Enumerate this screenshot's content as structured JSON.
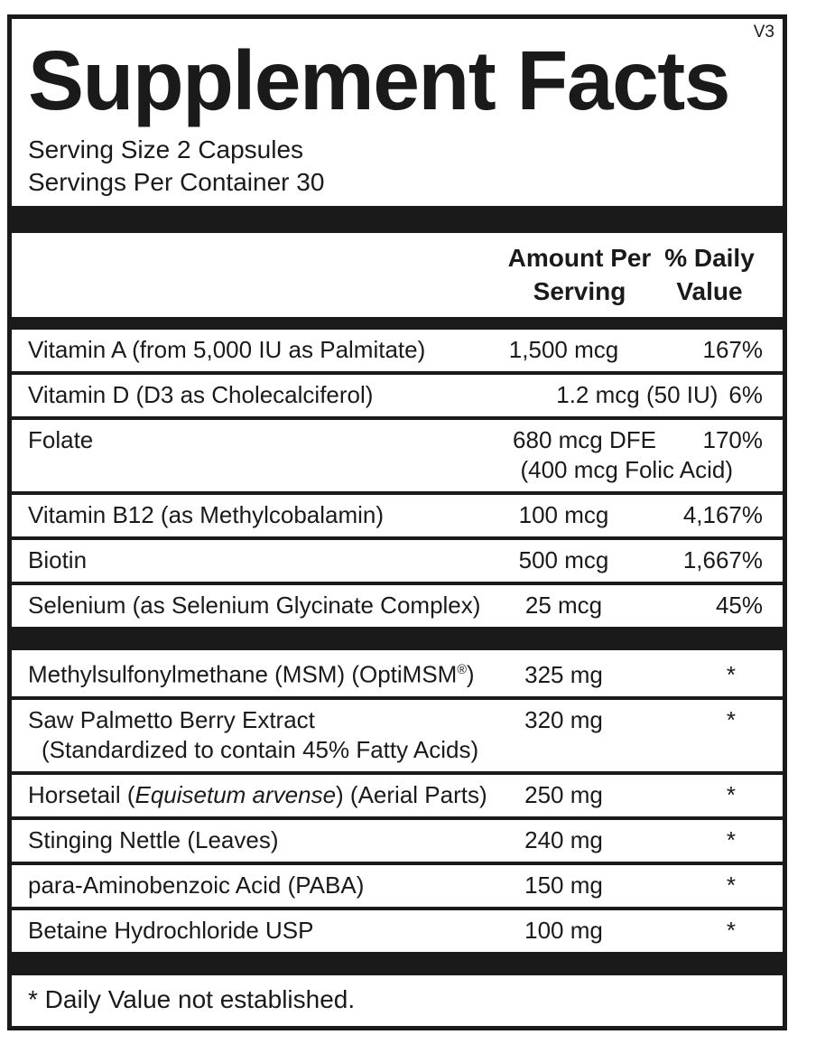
{
  "panel": {
    "version": "V3",
    "title": "Supplement Facts",
    "serving_size": "Serving Size 2 Capsules",
    "servings_per_container": "Servings Per Container 30",
    "columns": {
      "amount": "Amount Per Serving",
      "daily_value": "% Daily Value"
    },
    "footnote": "* Daily Value not established.",
    "colors": {
      "ink": "#1a1a1a",
      "background": "#ffffff"
    }
  },
  "sections": [
    {
      "rows": [
        {
          "name_parts": [
            {
              "t": "Vitamin A (from 5,000 IU as Palmitate)"
            }
          ],
          "amount": "1,500 mcg",
          "dv": "167%"
        },
        {
          "name_parts": [
            {
              "t": "Vitamin D (D3 as Cholecalciferol)"
            }
          ],
          "amount": "1.2 mcg (50 IU)",
          "dv": "6%",
          "layout": "combined"
        },
        {
          "name_parts": [
            {
              "t": "Folate"
            }
          ],
          "amount": "680 mcg DFE",
          "amount_align": "right",
          "dv": "170%",
          "sub": {
            "text": "(400 mcg Folic Acid)",
            "align": "right"
          }
        },
        {
          "name_parts": [
            {
              "t": "Vitamin B12 (as Methylcobalamin)"
            }
          ],
          "amount": "100 mcg",
          "dv": "4,167%"
        },
        {
          "name_parts": [
            {
              "t": "Biotin"
            }
          ],
          "amount": "500 mcg",
          "dv": "1,667%"
        },
        {
          "name_parts": [
            {
              "t": "Selenium (as Selenium Glycinate Complex)"
            }
          ],
          "amount": "25 mcg",
          "dv": "45%"
        }
      ]
    },
    {
      "rows": [
        {
          "name_parts": [
            {
              "t": "Methylsulfonylmethane (MSM) (OptiMSM"
            },
            {
              "t": "®",
              "sup": true
            },
            {
              "t": ")"
            }
          ],
          "amount": "325 mg",
          "dv": "*"
        },
        {
          "name_parts": [
            {
              "t": "Saw Palmetto Berry Extract"
            }
          ],
          "amount": "320 mg",
          "dv": "*",
          "sub": {
            "text": "(Standardized to contain 45% Fatty Acids)",
            "align": "left"
          }
        },
        {
          "name_parts": [
            {
              "t": "Horsetail ("
            },
            {
              "t": "Equisetum arvense",
              "italic": true
            },
            {
              "t": ") (Aerial Parts)"
            }
          ],
          "amount": "250 mg",
          "dv": "*"
        },
        {
          "name_parts": [
            {
              "t": "Stinging Nettle (Leaves)"
            }
          ],
          "amount": "240 mg",
          "dv": "*"
        },
        {
          "name_parts": [
            {
              "t": "para-Aminobenzoic Acid (PABA)"
            }
          ],
          "amount": "150 mg",
          "dv": "*"
        },
        {
          "name_parts": [
            {
              "t": "Betaine Hydrochloride USP"
            }
          ],
          "amount": "100 mg",
          "dv": "*"
        }
      ]
    }
  ]
}
